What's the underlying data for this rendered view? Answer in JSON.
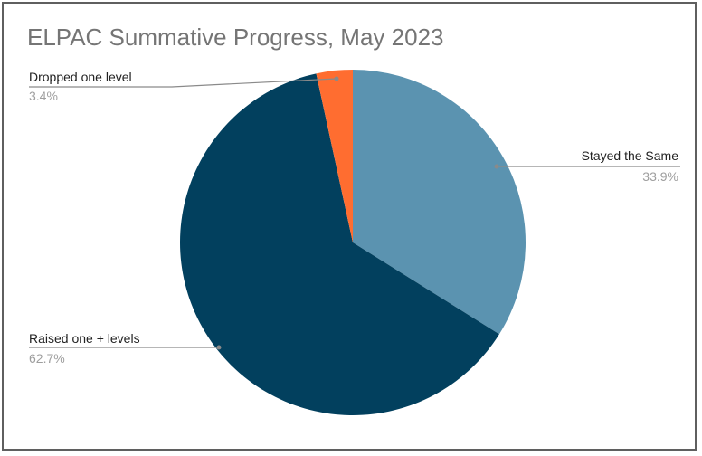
{
  "chart_data": {
    "type": "pie",
    "title": "ELPAC Summative Progress, May 2023",
    "slices": [
      {
        "label": "Stayed the Same",
        "value": 33.9,
        "display": "33.9%",
        "color": "#5b93b0"
      },
      {
        "label": "Raised one + levels",
        "value": 62.7,
        "display": "62.7%",
        "color": "#02405e"
      },
      {
        "label": "Dropped one level",
        "value": 3.4,
        "display": "3.4%",
        "color": "#ff6d30"
      }
    ],
    "start_angle_deg": 0,
    "direction": "clockwise"
  }
}
